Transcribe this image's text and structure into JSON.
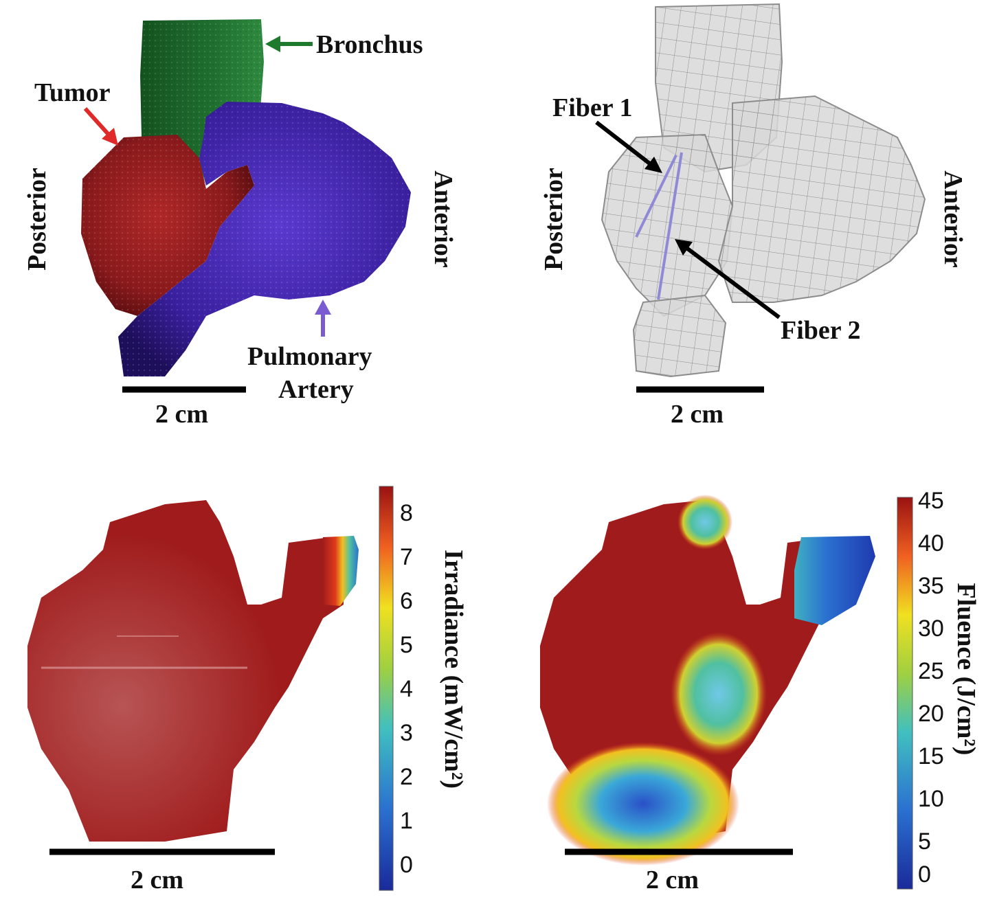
{
  "panel_a": {
    "labels": {
      "bronchus": "Bronchus",
      "tumor": "Tumor",
      "posterior": "Posterior",
      "anterior": "Anterior",
      "pulmonary": "Pulmonary",
      "artery": "Artery"
    },
    "scale_bar": "2 cm",
    "colors": {
      "bronchus": "#1f6b2a",
      "tumor": "#8e1a1c",
      "artery": "#3a1f9e",
      "bronchus_arrow": "#1f7a2e",
      "tumor_arrow": "#e02a2a",
      "artery_arrow": "#7a5bd0"
    }
  },
  "panel_b": {
    "labels": {
      "fiber1": "Fiber 1",
      "fiber2": "Fiber 2",
      "posterior": "Posterior",
      "anterior": "Anterior"
    },
    "scale_bar": "2 cm",
    "colors": {
      "mesh": "#bdbdbd",
      "fiber": "#8f8ad6"
    }
  },
  "panel_c": {
    "colorbar_title": "Irradiance (mW/cm²)",
    "ticks": [
      "8",
      "7",
      "6",
      "5",
      "4",
      "3",
      "2",
      "1",
      "0"
    ],
    "scale_bar": "2 cm",
    "colors": {
      "surface": "#9e1b1b"
    }
  },
  "panel_d": {
    "colorbar_title": "Fluence (J/cm²)",
    "ticks": [
      "45",
      "40",
      "35",
      "30",
      "25",
      "20",
      "15",
      "10",
      "5",
      "0"
    ],
    "scale_bar": "2 cm",
    "colors": {
      "surface": "#a01c1c"
    }
  }
}
